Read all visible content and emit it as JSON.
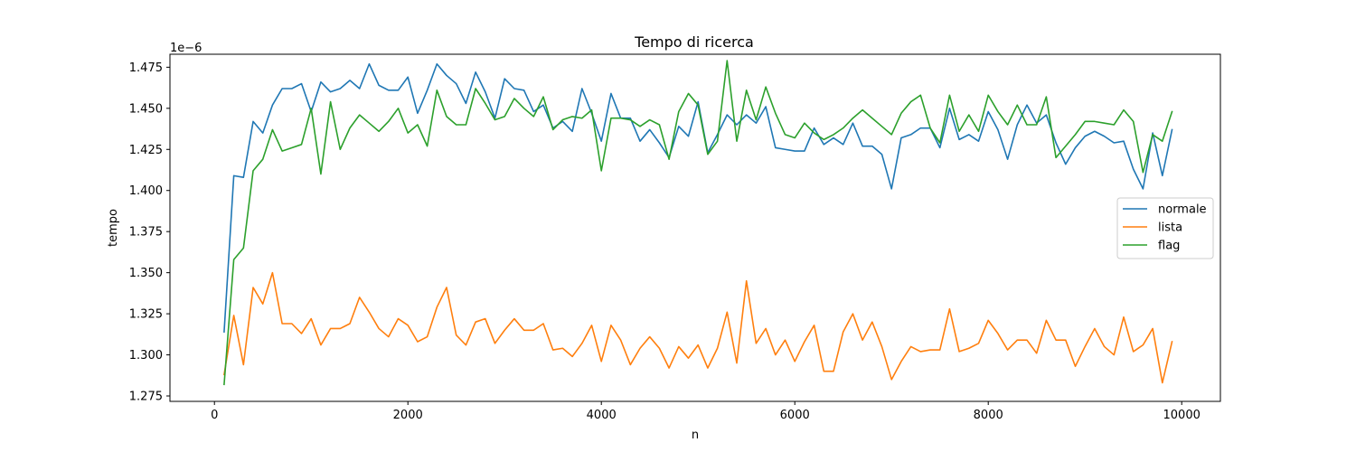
{
  "chart_data": {
    "type": "line",
    "title": "Tempo di ricerca",
    "xlabel": "n",
    "ylabel": "tempo",
    "offset_text": "1e−6",
    "xlim": [
      -460,
      10400
    ],
    "ylim": [
      1.2717,
      1.4829
    ],
    "xticks": [
      0,
      2000,
      4000,
      6000,
      8000,
      10000
    ],
    "xtick_labels": [
      "0",
      "2000",
      "4000",
      "6000",
      "8000",
      "10000"
    ],
    "yticks": [
      1.275,
      1.3,
      1.325,
      1.35,
      1.375,
      1.4,
      1.425,
      1.45,
      1.475
    ],
    "ytick_labels": [
      "1.275",
      "1.300",
      "1.325",
      "1.350",
      "1.375",
      "1.400",
      "1.425",
      "1.450",
      "1.475"
    ],
    "grid": false,
    "legend_position": "center-right",
    "x": [
      100,
      200,
      300,
      400,
      500,
      600,
      700,
      800,
      900,
      1000,
      1100,
      1200,
      1300,
      1400,
      1500,
      1600,
      1700,
      1800,
      1900,
      2000,
      2100,
      2200,
      2300,
      2400,
      2500,
      2600,
      2700,
      2800,
      2900,
      3000,
      3100,
      3200,
      3300,
      3400,
      3500,
      3600,
      3700,
      3800,
      3900,
      4000,
      4100,
      4200,
      4300,
      4400,
      4500,
      4600,
      4700,
      4800,
      4900,
      5000,
      5100,
      5200,
      5300,
      5400,
      5500,
      5600,
      5700,
      5800,
      5900,
      6000,
      6100,
      6200,
      6300,
      6400,
      6500,
      6600,
      6700,
      6800,
      6900,
      7000,
      7100,
      7200,
      7300,
      7400,
      7500,
      7600,
      7700,
      7800,
      7900,
      8000,
      8100,
      8200,
      8300,
      8400,
      8500,
      8600,
      8700,
      8800,
      8900,
      9000,
      9100,
      9200,
      9300,
      9400,
      9500,
      9600,
      9700,
      9800,
      9900
    ],
    "series": [
      {
        "name": "normale",
        "color": "#1f77b4",
        "values": [
          1.314,
          1.409,
          1.408,
          1.442,
          1.435,
          1.452,
          1.462,
          1.462,
          1.465,
          1.448,
          1.466,
          1.46,
          1.462,
          1.467,
          1.462,
          1.477,
          1.464,
          1.461,
          1.461,
          1.469,
          1.447,
          1.461,
          1.477,
          1.47,
          1.465,
          1.453,
          1.472,
          1.46,
          1.444,
          1.468,
          1.462,
          1.461,
          1.448,
          1.452,
          1.438,
          1.442,
          1.436,
          1.462,
          1.447,
          1.43,
          1.459,
          1.444,
          1.444,
          1.43,
          1.437,
          1.429,
          1.42,
          1.439,
          1.433,
          1.454,
          1.423,
          1.434,
          1.446,
          1.44,
          1.446,
          1.441,
          1.451,
          1.426,
          1.425,
          1.424,
          1.424,
          1.438,
          1.428,
          1.432,
          1.428,
          1.441,
          1.427,
          1.427,
          1.422,
          1.401,
          1.432,
          1.434,
          1.438,
          1.438,
          1.426,
          1.45,
          1.431,
          1.434,
          1.43,
          1.448,
          1.437,
          1.419,
          1.44,
          1.452,
          1.441,
          1.446,
          1.429,
          1.416,
          1.426,
          1.433,
          1.436,
          1.433,
          1.429,
          1.43,
          1.413,
          1.401,
          1.435,
          1.409,
          1.437
        ]
      },
      {
        "name": "lista",
        "color": "#ff7f0e",
        "values": [
          1.288,
          1.324,
          1.294,
          1.341,
          1.331,
          1.35,
          1.319,
          1.319,
          1.313,
          1.322,
          1.306,
          1.316,
          1.316,
          1.319,
          1.335,
          1.326,
          1.316,
          1.311,
          1.322,
          1.318,
          1.308,
          1.311,
          1.329,
          1.341,
          1.312,
          1.306,
          1.32,
          1.322,
          1.307,
          1.315,
          1.322,
          1.315,
          1.315,
          1.319,
          1.303,
          1.304,
          1.299,
          1.307,
          1.318,
          1.296,
          1.318,
          1.309,
          1.294,
          1.304,
          1.311,
          1.304,
          1.292,
          1.305,
          1.298,
          1.306,
          1.292,
          1.304,
          1.326,
          1.295,
          1.345,
          1.307,
          1.316,
          1.3,
          1.309,
          1.296,
          1.308,
          1.318,
          1.29,
          1.29,
          1.314,
          1.325,
          1.309,
          1.32,
          1.305,
          1.285,
          1.296,
          1.305,
          1.302,
          1.303,
          1.303,
          1.328,
          1.302,
          1.304,
          1.307,
          1.321,
          1.313,
          1.303,
          1.309,
          1.309,
          1.301,
          1.321,
          1.309,
          1.309,
          1.293,
          1.305,
          1.316,
          1.305,
          1.3,
          1.323,
          1.302,
          1.306,
          1.316,
          1.283,
          1.308
        ]
      },
      {
        "name": "flag",
        "color": "#2ca02c",
        "values": [
          1.282,
          1.358,
          1.365,
          1.412,
          1.419,
          1.437,
          1.424,
          1.426,
          1.428,
          1.45,
          1.41,
          1.454,
          1.425,
          1.438,
          1.446,
          1.441,
          1.436,
          1.442,
          1.45,
          1.435,
          1.44,
          1.427,
          1.461,
          1.445,
          1.44,
          1.44,
          1.462,
          1.453,
          1.443,
          1.445,
          1.456,
          1.45,
          1.445,
          1.457,
          1.437,
          1.443,
          1.445,
          1.444,
          1.449,
          1.412,
          1.444,
          1.444,
          1.443,
          1.439,
          1.443,
          1.44,
          1.419,
          1.448,
          1.459,
          1.452,
          1.422,
          1.43,
          1.479,
          1.43,
          1.461,
          1.443,
          1.463,
          1.447,
          1.434,
          1.432,
          1.441,
          1.435,
          1.431,
          1.434,
          1.438,
          1.444,
          1.449,
          1.444,
          1.439,
          1.434,
          1.447,
          1.454,
          1.458,
          1.438,
          1.429,
          1.458,
          1.436,
          1.446,
          1.436,
          1.458,
          1.448,
          1.44,
          1.452,
          1.44,
          1.44,
          1.457,
          1.42,
          1.427,
          1.434,
          1.442,
          1.442,
          1.441,
          1.44,
          1.449,
          1.442,
          1.411,
          1.434,
          1.43,
          1.448
        ]
      }
    ]
  }
}
